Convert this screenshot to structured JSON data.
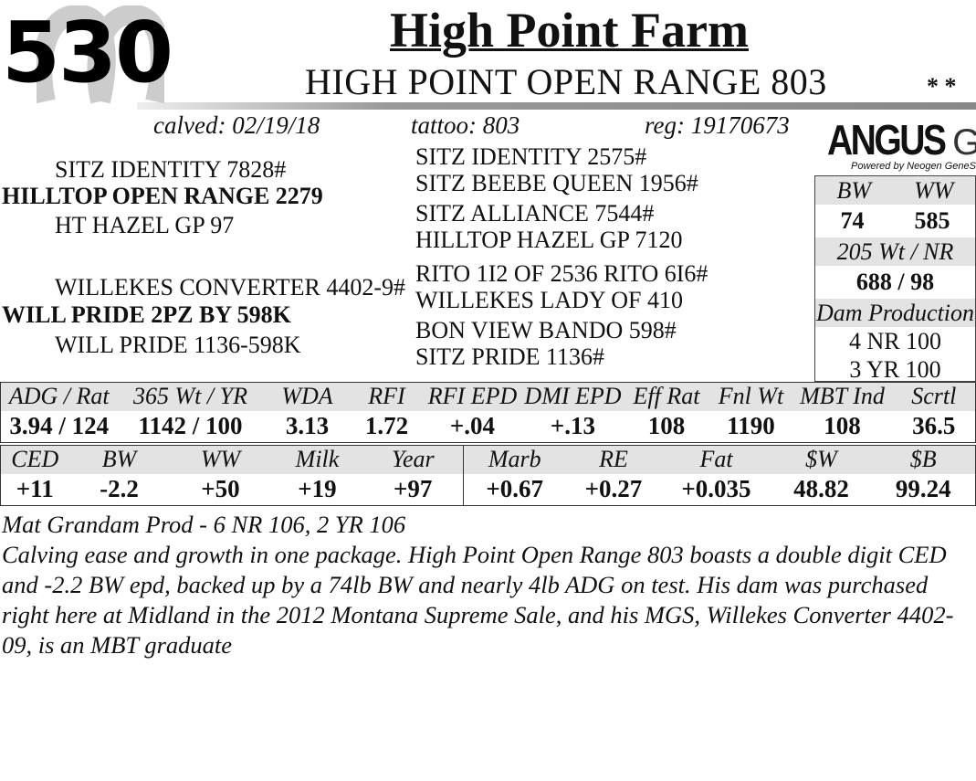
{
  "lot": "530",
  "farm": "High Point Farm",
  "animal_name": "HIGH POINT OPEN RANGE 803",
  "stars": "* *",
  "calved": "calved: 02/19/18",
  "tattoo": "tattoo: 803",
  "reg": "reg: 19170673",
  "logo": {
    "brand": "ANGUS",
    "suffix": "GS",
    "tagline": "Powered by Neogen GeneSeek"
  },
  "pedigree": {
    "sire_sire": "SITZ IDENTITY 7828#",
    "sire": "HILLTOP OPEN RANGE 2279",
    "sire_dam": "HT HAZEL GP 97",
    "dam_sire": "WILLEKES CONVERTER 4402-9#",
    "dam": "WILL PRIDE 2PZ BY 598K",
    "dam_dam": "WILL PRIDE 1136-598K",
    "gen3": [
      "SITZ IDENTITY 2575#",
      "SITZ BEEBE QUEEN 1956#",
      "SITZ ALLIANCE 7544#",
      "HILLTOP HAZEL GP 7120",
      "RITO 1I2 OF 2536 RITO 6I6#",
      "WILLEKES LADY OF 410",
      "BON VIEW BANDO 598#",
      "SITZ PRIDE 1136#"
    ]
  },
  "box": {
    "bw_label": "BW",
    "ww_label": "WW",
    "bw": "74",
    "ww": "585",
    "wt205_label": "205 Wt / NR",
    "wt205": "688 / 98",
    "dam_prod_label": "Dam Production",
    "dam_prod": [
      "4 NR 100",
      "3 YR 100"
    ]
  },
  "test": {
    "headers": [
      "ADG / Rat",
      "365 Wt / YR",
      "WDA",
      "RFI",
      "RFI EPD",
      "DMI EPD",
      "Eff Rat",
      "Fnl Wt",
      "MBT Ind",
      "Scrtl"
    ],
    "values": [
      "3.94 / 124",
      "1142 / 100",
      "3.13",
      "1.72",
      "+.04",
      "+.13",
      "108",
      "1190",
      "108",
      "36.5"
    ]
  },
  "epd": {
    "headers": [
      "CED",
      "BW",
      "WW",
      "Milk",
      "Year",
      "Marb",
      "RE",
      "Fat",
      "$W",
      "$B"
    ],
    "values": [
      "+11",
      "-2.2",
      "+50",
      "+19",
      "+97",
      "+0.67",
      "+0.27",
      "+0.035",
      "48.82",
      "99.24"
    ]
  },
  "notes": {
    "grandam": "Mat Grandam Prod - 6 NR 106, 2 YR 106",
    "description": "Calving ease and growth in one package.  High Point Open Range 803 boasts a double digit CED and -2.2 BW epd, backed up by a 74lb BW and nearly 4lb ADG on test. His dam was purchased right here at Midland in the 2012 Montana Supreme Sale, and his MGS, Willekes Converter 4402-09, is an MBT graduate"
  }
}
